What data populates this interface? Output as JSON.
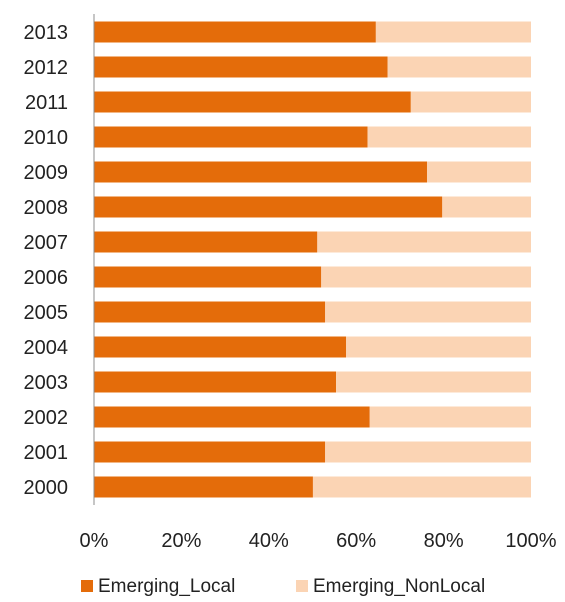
{
  "chart_data": {
    "type": "bar",
    "orientation": "horizontal",
    "stacked": "percent",
    "categories": [
      "2013",
      "2012",
      "2011",
      "2010",
      "2009",
      "2008",
      "2007",
      "2006",
      "2005",
      "2004",
      "2003",
      "2002",
      "2001",
      "2000"
    ],
    "series": [
      {
        "name": "Emerging_Local",
        "color": "#E46C0A",
        "values": [
          64.5,
          67.2,
          72.5,
          62.6,
          76.2,
          79.7,
          51.1,
          52.0,
          52.9,
          57.7,
          55.4,
          63.1,
          52.9,
          50.1
        ]
      },
      {
        "name": "Emerging_NonLocal",
        "color": "#FBD4B4",
        "values": [
          35.5,
          32.8,
          27.5,
          37.4,
          23.8,
          20.3,
          48.9,
          48.0,
          47.1,
          42.3,
          44.6,
          36.9,
          47.1,
          49.9
        ]
      }
    ],
    "x_ticks": [
      "0%",
      "20%",
      "40%",
      "60%",
      "80%",
      "100%"
    ],
    "xlim": [
      0,
      100
    ],
    "grid": false,
    "legend_position": "bottom",
    "title": "",
    "xlabel": "",
    "ylabel": ""
  }
}
